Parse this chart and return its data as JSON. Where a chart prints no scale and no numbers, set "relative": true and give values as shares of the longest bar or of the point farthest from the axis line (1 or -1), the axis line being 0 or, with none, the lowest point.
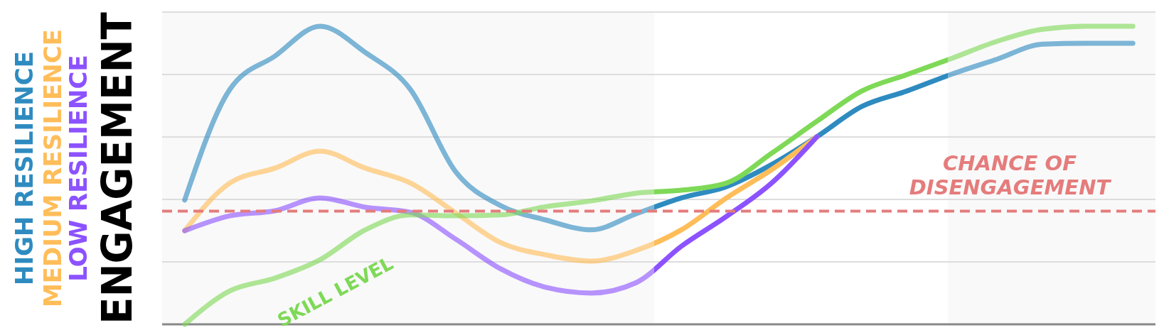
{
  "chart_data": {
    "type": "line",
    "relative": true,
    "ylabel": "ENGAGEMENT",
    "categories": [
      null,
      null,
      null,
      null,
      null,
      null,
      null,
      null,
      null,
      null,
      null,
      null,
      null,
      null,
      null,
      null,
      null,
      null,
      null,
      null,
      null,
      null
    ],
    "series": [
      {
        "name": "HIGH RESILIENCE",
        "color": "#2e8bc0",
        "values": [
          0.417,
          0.788,
          0.9,
          1.0,
          0.912,
          0.788,
          0.512,
          0.398,
          0.35,
          0.317,
          0.371,
          0.424,
          0.462,
          0.536,
          0.629,
          0.731,
          0.783,
          0.84,
          0.89,
          0.94,
          0.943,
          0.943
        ]
      },
      {
        "name": "MEDIUM RESILIENCE",
        "color": "#ffbd59",
        "values": [
          0.314,
          0.474,
          0.524,
          0.581,
          0.524,
          0.474,
          0.374,
          0.274,
          0.233,
          0.212,
          0.248,
          0.317,
          0.424,
          0.519,
          0.629,
          null,
          null,
          null,
          null,
          null,
          null,
          null
        ]
      },
      {
        "name": "LOW RESILIENCE",
        "color": "#8c52ff",
        "values": [
          0.314,
          0.364,
          0.381,
          0.424,
          0.393,
          0.376,
          0.286,
          0.186,
          0.124,
          0.105,
          0.14,
          0.262,
          0.362,
          0.474,
          0.629,
          null,
          null,
          null,
          null,
          null,
          null,
          null
        ]
      },
      {
        "name": "SKILL LEVEL",
        "color": "#7ed957",
        "values": [
          0.0,
          0.112,
          0.155,
          0.217,
          0.317,
          0.367,
          0.364,
          0.367,
          0.395,
          0.414,
          0.44,
          0.45,
          0.474,
          0.574,
          0.681,
          0.783,
          0.838,
          0.893,
          0.95,
          0.99,
          1.0,
          1.0
        ]
      }
    ],
    "ref_lines": [
      {
        "axis": "y",
        "value": 0.38,
        "label": "CHANCE OF DISENGAGEMENT",
        "color": "#e57c7c",
        "line_style": "dashed"
      }
    ],
    "grid": "y",
    "legend": false,
    "line_style": "solid",
    "marker": "none"
  }
}
